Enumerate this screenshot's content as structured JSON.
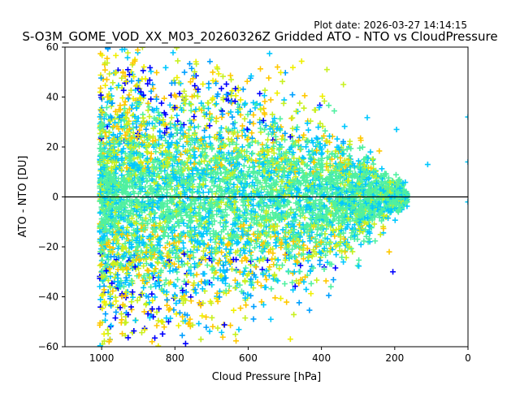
{
  "plot_date": "Plot date: 2026-03-27 14:14:15",
  "chart_data": {
    "type": "scatter",
    "title": "S-O3M_GOME_VOD_XX_M03_20260326Z Gridded ATO - NTO vs CloudPressure",
    "xlabel": "Cloud Pressure [hPa]",
    "ylabel": "ATO - NTO [DU]",
    "xlim": [
      1100,
      0
    ],
    "ylim": [
      -60,
      60
    ],
    "x_inverted": true,
    "x_ticks": [
      1000,
      800,
      600,
      400,
      200,
      0
    ],
    "y_ticks": [
      -60,
      -40,
      -20,
      0,
      20,
      40,
      60
    ],
    "x_tick_labels": [
      "1000",
      "800",
      "600",
      "400",
      "200",
      "0"
    ],
    "y_tick_labels": [
      "−60",
      "−40",
      "−20",
      "0",
      "20",
      "40",
      "60"
    ],
    "reference_line_y": 0,
    "marker": "plus",
    "grid": false,
    "colors": {
      "dominant": "#50f0a0",
      "secondary": "#00c8ff",
      "tertiary": "#c8f020",
      "outer_low": "#ffc800",
      "outer_high": "#0000ff",
      "mid": "#00a0ff",
      "accent": "#f0f000"
    },
    "isolated_points": [
      {
        "x": 0,
        "y": 32,
        "color": "#00c8ff"
      },
      {
        "x": 0,
        "y": 14,
        "color": "#00c8ff"
      },
      {
        "x": 0,
        "y": -2,
        "color": "#00c8ff"
      },
      {
        "x": 110,
        "y": 13,
        "color": "#00c8ff"
      },
      {
        "x": 195,
        "y": 27,
        "color": "#00c8ff"
      },
      {
        "x": 205,
        "y": -30,
        "color": "#0000ff"
      },
      {
        "x": 215,
        "y": -22,
        "color": "#ffc800"
      },
      {
        "x": 385,
        "y": 51,
        "color": "#c8f020"
      },
      {
        "x": 520,
        "y": 52,
        "color": "#ffc800"
      },
      {
        "x": 340,
        "y": 45,
        "color": "#c8f020"
      }
    ]
  }
}
